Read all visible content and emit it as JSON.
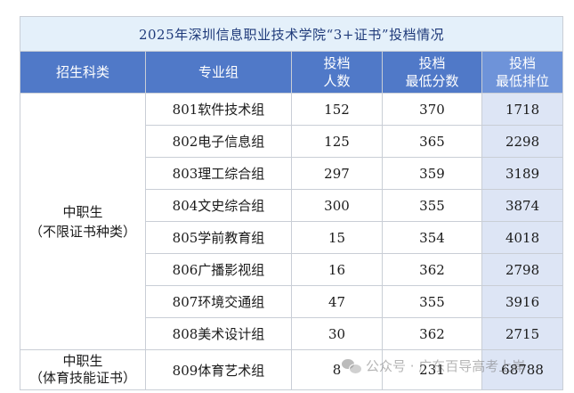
{
  "title": "2025年深圳信息职业技术学院“3+证书”投档情况",
  "headers": {
    "category": "招生科类",
    "group": "专业组",
    "count_line1": "投档",
    "count_line2": "人数",
    "min_score_line1": "投档",
    "min_score_line2": "最低分数",
    "min_rank_line1": "投档",
    "min_rank_line2": "最低排位"
  },
  "categories": [
    {
      "line1": "中职生",
      "line2": "（不限证书种类）"
    },
    {
      "line1": "中职生",
      "line2": "（体育技能证书）"
    }
  ],
  "rows": [
    {
      "group": "801软件技术组",
      "count": "152",
      "min_score": "370",
      "min_rank": "1718"
    },
    {
      "group": "802电子信息组",
      "count": "125",
      "min_score": "365",
      "min_rank": "2298"
    },
    {
      "group": "803理工综合组",
      "count": "297",
      "min_score": "359",
      "min_rank": "3189"
    },
    {
      "group": "804文史综合组",
      "count": "300",
      "min_score": "355",
      "min_rank": "3874"
    },
    {
      "group": "805学前教育组",
      "count": "15",
      "min_score": "354",
      "min_rank": "4018"
    },
    {
      "group": "806广播影视组",
      "count": "16",
      "min_score": "362",
      "min_rank": "2798"
    },
    {
      "group": "807环境交通组",
      "count": "47",
      "min_score": "355",
      "min_rank": "3916"
    },
    {
      "group": "808美术设计组",
      "count": "30",
      "min_score": "362",
      "min_rank": "2715"
    },
    {
      "group": "809体育艺术组",
      "count": "8",
      "min_score": "231",
      "min_rank": "68788"
    }
  ],
  "watermark": "公众号 · 广东百导高考上岸",
  "colors": {
    "header_bg": "#5079c8",
    "title_bg": "#e4f0fa",
    "rank_col_bg": "#dde5f5"
  }
}
